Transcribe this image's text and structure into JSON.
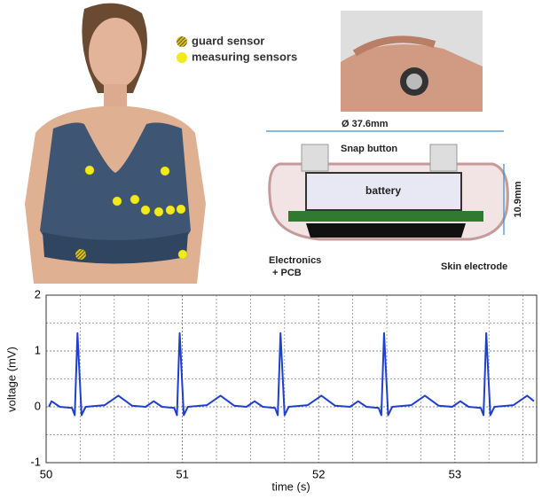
{
  "illustration": {
    "legend": [
      "guard sensor",
      "measuring sensors"
    ],
    "device": {
      "diameter": "Ø 37.6mm",
      "snap": "Snap button",
      "battery": "battery",
      "height": "10.9mm",
      "electronics": [
        "Electronics",
        "+ PCB"
      ],
      "skin": "Skin electrode"
    }
  },
  "chart_data": {
    "type": "line",
    "x_label": "time (s)",
    "y_label": "voltage (mV)",
    "color": "#1f3fd0",
    "xlim": [
      50,
      53.6
    ],
    "ylim": [
      -1,
      2
    ],
    "xticks": [
      50,
      51,
      52,
      53
    ],
    "yticks": [
      -1,
      0,
      1,
      2
    ],
    "grid": true,
    "x_minor_grid": [
      50.25,
      50.5,
      50.75,
      51.25,
      51.5,
      51.75,
      52.25,
      52.5,
      52.75,
      53.25,
      53.5
    ],
    "y_minor_grid": [
      -0.5,
      0.5,
      1.5
    ],
    "x": [
      50.02,
      50.04,
      50.1,
      50.19,
      50.21,
      50.23,
      50.26,
      50.29,
      50.43,
      50.53,
      50.63,
      50.73,
      50.79,
      50.85,
      50.94,
      50.96,
      50.98,
      51.01,
      51.04,
      51.18,
      51.28,
      51.38,
      51.47,
      51.53,
      51.59,
      51.68,
      51.7,
      51.72,
      51.75,
      51.78,
      51.92,
      52.02,
      52.12,
      52.23,
      52.29,
      52.35,
      52.44,
      52.46,
      52.48,
      52.51,
      52.54,
      52.68,
      52.78,
      52.88,
      52.98,
      53.04,
      53.1,
      53.19,
      53.21,
      53.23,
      53.26,
      53.29,
      53.43,
      53.53,
      53.58
    ],
    "values": [
      0,
      0.1,
      0,
      -0.02,
      -0.15,
      1.32,
      -0.15,
      0,
      0.03,
      0.2,
      0.02,
      0,
      0.1,
      0,
      -0.02,
      -0.15,
      1.32,
      -0.15,
      0,
      0.03,
      0.2,
      0.02,
      0,
      0.1,
      0,
      -0.02,
      -0.15,
      1.32,
      -0.15,
      0,
      0.03,
      0.2,
      0.02,
      0,
      0.1,
      0,
      -0.02,
      -0.15,
      1.32,
      -0.15,
      0,
      0.03,
      0.2,
      0.02,
      0,
      0.1,
      0,
      -0.02,
      -0.15,
      1.32,
      -0.15,
      0,
      0.03,
      0.2,
      0.1
    ]
  }
}
